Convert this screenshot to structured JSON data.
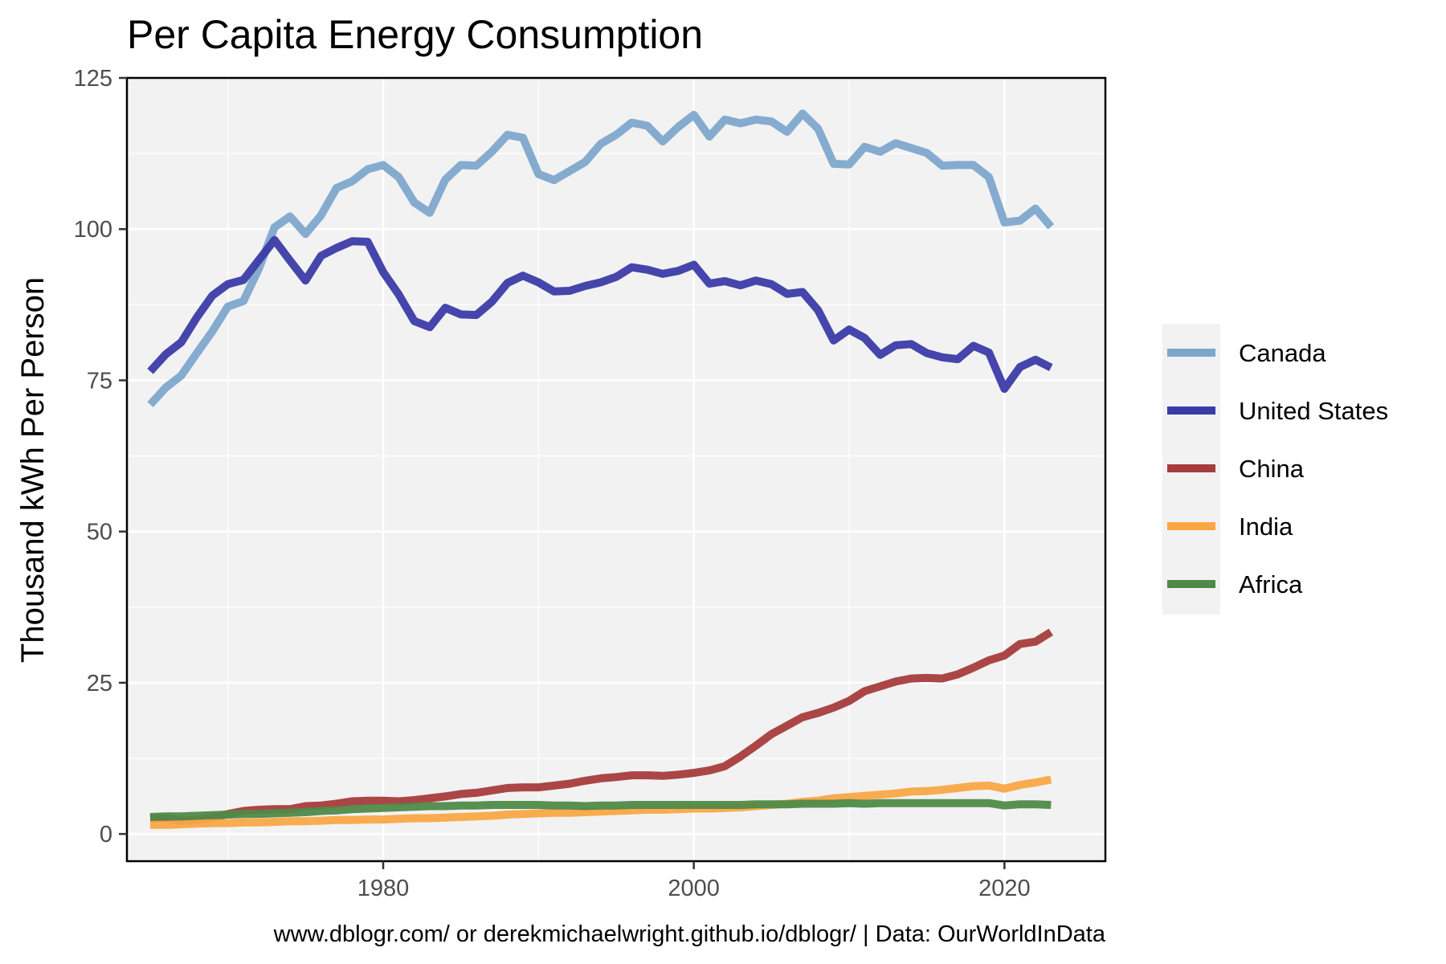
{
  "chart_data": {
    "type": "line",
    "title": "Per Capita Energy Consumption",
    "xlabel": "",
    "ylabel": "Thousand kWh Per Person",
    "caption": "www.dblogr.com/ or derekmichaelwright.github.io/dblogr/ | Data: OurWorldInData",
    "xlim": [
      1963.5,
      2026.5
    ],
    "ylim": [
      -4.5,
      125
    ],
    "x_ticks": [
      1980,
      2000,
      2020
    ],
    "y_ticks": [
      0,
      25,
      50,
      75,
      100,
      125
    ],
    "grid": true,
    "legend_position": "right",
    "x": [
      1965,
      1966,
      1967,
      1968,
      1969,
      1970,
      1971,
      1972,
      1973,
      1974,
      1975,
      1976,
      1977,
      1978,
      1979,
      1980,
      1981,
      1982,
      1983,
      1984,
      1985,
      1986,
      1987,
      1988,
      1989,
      1990,
      1991,
      1992,
      1993,
      1994,
      1995,
      1996,
      1997,
      1998,
      1999,
      2000,
      2001,
      2002,
      2003,
      2004,
      2005,
      2006,
      2007,
      2008,
      2009,
      2010,
      2011,
      2012,
      2013,
      2014,
      2015,
      2016,
      2017,
      2018,
      2019,
      2020,
      2021,
      2022,
      2023
    ],
    "series": [
      {
        "name": "Canada",
        "color": "#7ea6cc",
        "values": [
          71,
          73.8,
          75.8,
          79.5,
          83.1,
          87.2,
          88.1,
          93.5,
          100.3,
          102.1,
          99.2,
          102.3,
          106.8,
          107.9,
          109.9,
          110.6,
          108.6,
          104.4,
          102.7,
          108.2,
          110.6,
          110.5,
          112.8,
          115.6,
          115.1,
          109.1,
          108.1,
          109.6,
          111.1,
          114.1,
          115.6,
          117.6,
          117.1,
          114.5,
          116.9,
          118.9,
          115.3,
          118.1,
          117.5,
          118.1,
          117.8,
          116.1,
          119.1,
          116.6,
          110.8,
          110.7,
          113.6,
          112.8,
          114.2,
          113.4,
          112.6,
          110.5,
          110.6,
          110.6,
          108.6,
          101.1,
          101.4,
          103.4,
          100.4
        ]
      },
      {
        "name": "United States",
        "color": "#3b3ba8",
        "values": [
          76.5,
          79.3,
          81.3,
          85.4,
          89,
          90.9,
          91.6,
          94.9,
          98.2,
          94.8,
          91.5,
          95.6,
          96.9,
          98,
          97.9,
          92.9,
          89.2,
          84.8,
          83.8,
          87,
          85.9,
          85.8,
          88,
          91.1,
          92.3,
          91.2,
          89.7,
          89.8,
          90.6,
          91.2,
          92.1,
          93.7,
          93.3,
          92.6,
          93.1,
          94.1,
          91,
          91.4,
          90.7,
          91.5,
          90.9,
          89.3,
          89.6,
          86.6,
          81.6,
          83.4,
          82,
          79.2,
          80.8,
          81,
          79.5,
          78.8,
          78.5,
          80.7,
          79.6,
          73.6,
          77.2,
          78.4,
          77.1
        ]
      },
      {
        "name": "China",
        "color": "#a63c3c",
        "values": [
          2.5,
          2.6,
          2.2,
          2.3,
          2.7,
          3.3,
          3.8,
          4.0,
          4.1,
          4.1,
          4.6,
          4.7,
          5.0,
          5.4,
          5.5,
          5.5,
          5.4,
          5.6,
          5.9,
          6.2,
          6.6,
          6.8,
          7.2,
          7.6,
          7.7,
          7.7,
          8.0,
          8.3,
          8.8,
          9.2,
          9.4,
          9.7,
          9.7,
          9.6,
          9.8,
          10.1,
          10.5,
          11.2,
          12.8,
          14.6,
          16.5,
          17.9,
          19.3,
          20,
          20.9,
          22,
          23.6,
          24.4,
          25.2,
          25.7,
          25.8,
          25.7,
          26.4,
          27.5,
          28.7,
          29.5,
          31.4,
          31.8,
          33.4
        ]
      },
      {
        "name": "India",
        "color": "#f9a746",
        "values": [
          1.5,
          1.5,
          1.6,
          1.7,
          1.8,
          1.8,
          1.9,
          1.9,
          2.0,
          2.1,
          2.1,
          2.2,
          2.3,
          2.3,
          2.4,
          2.4,
          2.5,
          2.6,
          2.6,
          2.7,
          2.8,
          2.9,
          3.0,
          3.2,
          3.3,
          3.4,
          3.5,
          3.5,
          3.6,
          3.7,
          3.8,
          3.9,
          4.0,
          4.0,
          4.1,
          4.2,
          4.2,
          4.3,
          4.4,
          4.6,
          4.8,
          5.0,
          5.3,
          5.5,
          5.9,
          6.1,
          6.3,
          6.5,
          6.7,
          7.0,
          7.1,
          7.3,
          7.6,
          7.9,
          8.0,
          7.5,
          8.1,
          8.5,
          9.0
        ]
      },
      {
        "name": "Africa",
        "color": "#4f8a48",
        "values": [
          2.8,
          2.9,
          2.9,
          3.0,
          3.1,
          3.2,
          3.3,
          3.3,
          3.4,
          3.5,
          3.6,
          3.8,
          3.9,
          4.1,
          4.2,
          4.3,
          4.4,
          4.5,
          4.6,
          4.6,
          4.7,
          4.7,
          4.8,
          4.8,
          4.8,
          4.8,
          4.7,
          4.7,
          4.6,
          4.7,
          4.7,
          4.8,
          4.8,
          4.8,
          4.8,
          4.8,
          4.8,
          4.8,
          4.8,
          4.9,
          4.9,
          4.9,
          5.0,
          5.0,
          5.0,
          5.1,
          5.0,
          5.1,
          5.1,
          5.1,
          5.1,
          5.1,
          5.1,
          5.1,
          5.1,
          4.7,
          4.9,
          4.9,
          4.8
        ]
      }
    ]
  }
}
